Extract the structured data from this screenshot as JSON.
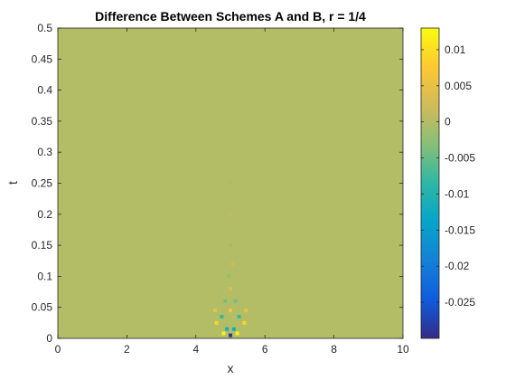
{
  "chart_data": {
    "type": "heatmap",
    "title": "Difference Between Schemes A and B, r = 1/4",
    "xlabel": "x",
    "ylabel": "t",
    "xlim": [
      0,
      10
    ],
    "ylim": [
      0,
      0.5
    ],
    "x_ticks": [
      0,
      2,
      4,
      6,
      8,
      10
    ],
    "x_tick_labels": [
      "0",
      "2",
      "4",
      "6",
      "8",
      "10"
    ],
    "y_ticks": [
      0,
      0.05,
      0.1,
      0.15,
      0.2,
      0.25,
      0.3,
      0.35,
      0.4,
      0.45,
      0.5
    ],
    "y_tick_labels": [
      "0",
      "0.05",
      "0.1",
      "0.15",
      "0.2",
      "0.25",
      "0.3",
      "0.35",
      "0.4",
      "0.45",
      "0.5"
    ],
    "background_value": 0,
    "colormap": "parula",
    "colorbar": {
      "clim": [
        -0.03,
        0.013
      ],
      "ticks": [
        0.01,
        0.005,
        0,
        -0.005,
        -0.01,
        -0.015,
        -0.02,
        -0.025
      ],
      "tick_labels": [
        "0.01",
        "0.005",
        "0",
        "-0.005",
        "-0.01",
        "-0.015",
        "-0.02",
        "-0.025"
      ],
      "colors": [
        "#352a87",
        "#0f5cdd",
        "#1481d6",
        "#06a4ca",
        "#2eb7a4",
        "#87bf77",
        "#d1bb59",
        "#fec832",
        "#f9fb0e"
      ]
    },
    "features": [
      {
        "x": 5.0,
        "t": 0.005,
        "value": -0.029
      },
      {
        "x": 4.8,
        "t": 0.008,
        "value": 0.012
      },
      {
        "x": 5.2,
        "t": 0.008,
        "value": 0.012
      },
      {
        "x": 4.9,
        "t": 0.015,
        "value": -0.012
      },
      {
        "x": 5.1,
        "t": 0.015,
        "value": -0.012
      },
      {
        "x": 4.6,
        "t": 0.025,
        "value": 0.009
      },
      {
        "x": 5.4,
        "t": 0.025,
        "value": 0.009
      },
      {
        "x": 4.75,
        "t": 0.035,
        "value": -0.008
      },
      {
        "x": 5.25,
        "t": 0.035,
        "value": -0.008
      },
      {
        "x": 5.0,
        "t": 0.045,
        "value": 0.006
      },
      {
        "x": 4.55,
        "t": 0.045,
        "value": 0.005
      },
      {
        "x": 5.45,
        "t": 0.045,
        "value": 0.005
      },
      {
        "x": 4.85,
        "t": 0.06,
        "value": -0.004
      },
      {
        "x": 5.15,
        "t": 0.06,
        "value": -0.004
      },
      {
        "x": 5.0,
        "t": 0.08,
        "value": 0.003
      },
      {
        "x": 4.95,
        "t": 0.1,
        "value": -0.002
      },
      {
        "x": 5.05,
        "t": 0.12,
        "value": 0.0015
      },
      {
        "x": 5.0,
        "t": 0.15,
        "value": -0.001
      },
      {
        "x": 5.0,
        "t": 0.2,
        "value": 0.0008
      },
      {
        "x": 5.0,
        "t": 0.25,
        "value": -0.0005
      }
    ]
  }
}
